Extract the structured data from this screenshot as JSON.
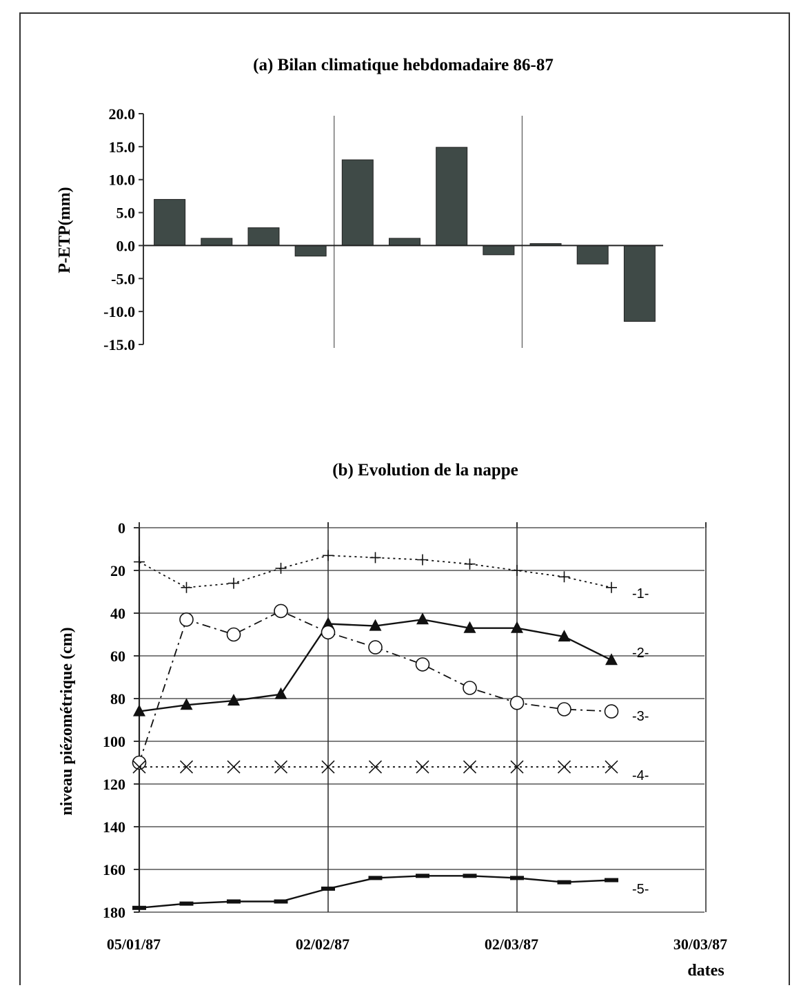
{
  "chart_data": [
    {
      "type": "bar",
      "title": "(a) Bilan climatique hebdomadaire 86-87",
      "ylabel": "P-ETP(mm)",
      "xlabel": "",
      "ylim": [
        -15,
        20
      ],
      "yticks": [
        "20.0",
        "15.0",
        "10.0",
        "5.0",
        "0.0",
        "-5.0",
        "-10.0",
        "-15.0"
      ],
      "values": [
        7.0,
        1.1,
        2.7,
        -1.6,
        13.0,
        1.1,
        14.9,
        -1.4,
        0.3,
        -2.8,
        -11.5
      ],
      "bar_color": "#3f4a47",
      "grid": false
    },
    {
      "type": "line",
      "title": "(b) Evolution de la nappe",
      "ylabel": "niveau piézométrique (cm)",
      "xlabel": "dates",
      "ylim": [
        0,
        180
      ],
      "y_inverted": true,
      "yticks": [
        "0",
        "20",
        "40",
        "60",
        "80",
        "100",
        "120",
        "140",
        "160",
        "180"
      ],
      "xtick_labels": [
        "05/01/87",
        "02/02/87",
        "02/03/87",
        "30/03/87"
      ],
      "x": [
        0,
        1,
        2,
        3,
        4,
        5,
        6,
        7,
        8,
        9,
        10
      ],
      "grid": true,
      "series": [
        {
          "name": "-1-",
          "marker": "plus",
          "line": "dotted",
          "values": [
            16,
            28,
            26,
            19,
            13,
            14,
            15,
            17,
            20,
            23,
            28
          ]
        },
        {
          "name": "-2-",
          "marker": "triangle",
          "line": "solid",
          "values": [
            86,
            83,
            81,
            78,
            45,
            46,
            43,
            47,
            47,
            51,
            62
          ]
        },
        {
          "name": "-3-",
          "marker": "circle",
          "line": "dashdot",
          "values": [
            110,
            43,
            50,
            39,
            49,
            56,
            64,
            75,
            82,
            85,
            86
          ]
        },
        {
          "name": "-4-",
          "marker": "x",
          "line": "dotted",
          "values": [
            112,
            112,
            112,
            112,
            112,
            112,
            112,
            112,
            112,
            112,
            112
          ]
        },
        {
          "name": "-5-",
          "marker": "dash",
          "line": "solid",
          "values": [
            178,
            176,
            175,
            175,
            169,
            164,
            163,
            163,
            164,
            166,
            165
          ]
        }
      ]
    }
  ]
}
